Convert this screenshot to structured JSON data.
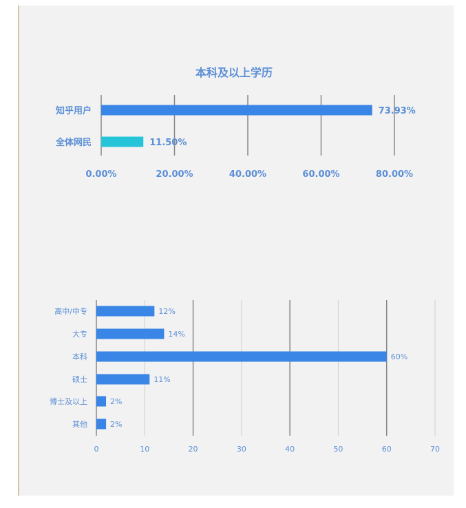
{
  "colors": {
    "label": "#5b8fd6",
    "bar_primary": "#3a86e6",
    "bar_secondary": "#26c4d8",
    "grid_dark": "#888888",
    "grid_light": "#cfcfcf",
    "background": "#f2f2f2"
  },
  "chart_data": [
    {
      "type": "bar",
      "orientation": "horizontal",
      "title": "本科及以上学历",
      "categories": [
        "知乎用户",
        "全体网民"
      ],
      "values": [
        73.93,
        11.5
      ],
      "value_labels": [
        "73.93%",
        "11.50%"
      ],
      "bar_colors": [
        "#3a86e6",
        "#26c4d8"
      ],
      "xlim": [
        0,
        80
      ],
      "xticks": [
        0,
        20,
        40,
        60,
        80
      ],
      "xtick_labels": [
        "0.00%",
        "20.00%",
        "40.00%",
        "60.00%",
        "80.00%"
      ],
      "grid": true
    },
    {
      "type": "bar",
      "orientation": "horizontal",
      "title": "",
      "categories": [
        "高中/中专",
        "大专",
        "本科",
        "硕士",
        "博士及以上",
        "其他"
      ],
      "values": [
        12,
        14,
        60,
        11,
        2,
        2
      ],
      "value_labels": [
        "12%",
        "14%",
        "60%",
        "11%",
        "2%",
        "2%"
      ],
      "xlim": [
        0,
        70
      ],
      "xticks": [
        0,
        10,
        20,
        30,
        40,
        50,
        60,
        70
      ],
      "xtick_labels": [
        "0",
        "10",
        "20",
        "30",
        "40",
        "50",
        "60",
        "70"
      ],
      "grid": true
    }
  ]
}
